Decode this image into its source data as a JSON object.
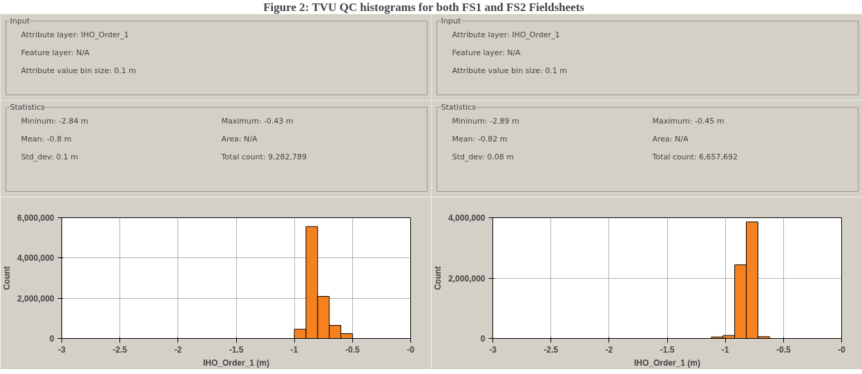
{
  "chart_data": [
    {
      "type": "other",
      "title": "Figure 2:      TVU QC histograms for both FS1 and FS2 Fieldsheets"
    },
    {
      "type": "other",
      "title": "Input",
      "annotations": [
        "Attribute layer:  IHO_Order_1",
        "Feature layer:  N/A",
        "Attribute value bin size:  0.1 m"
      ]
    },
    {
      "type": "other",
      "title": "Input",
      "annotations": [
        "Attribute layer:  IHO_Order_1",
        "Feature layer:  N/A",
        "Attribute value bin size:  0.1 m"
      ]
    },
    {
      "type": "other",
      "title": "Statistics",
      "annotations": [
        "Mininum:  -2.84 m",
        "Maximum:  -0.43 m",
        "Mean:  -0.8 m",
        "Area:  N/A",
        "Std_dev:  0.1 m",
        "Total count:  9,282,789"
      ]
    },
    {
      "type": "other",
      "title": "Statistics",
      "annotations": [
        "Mininum:  -2.89 m",
        "Maximum:  -0.45 m",
        "Mean:  -0.82 m",
        "Area:  N/A",
        "Std_dev:  0.08 m",
        "Total count:  6,657,692"
      ]
    },
    {
      "type": "histogram",
      "xlabel": "IHO_Order_1 (m)",
      "ylabel": "Count",
      "color": "#f5821f",
      "grid": true,
      "bins": [
        -2.9,
        -2.8,
        -2.7,
        -2.6,
        -2.5,
        -2.4,
        -2.3,
        -2.2,
        -2.1,
        -2.0,
        -1.9,
        -1.8,
        -1.7,
        -1.6,
        -1.5,
        -1.4,
        -1.3,
        -1.2,
        -1.1,
        -1.0,
        -0.9,
        -0.8,
        -0.7,
        -0.6,
        -0.5,
        -0.4
      ],
      "values": [
        0,
        0,
        0,
        0,
        0,
        0,
        0,
        0,
        0,
        0,
        0,
        0,
        0,
        0,
        0,
        0,
        0,
        null,
        null,
        460000,
        5560000,
        2090000,
        650000,
        240000,
        null
      ],
      "xlim": [
        -3,
        0
      ],
      "xticks": [
        -3,
        -2.5,
        -2,
        -1.5,
        -1,
        -0.5,
        {
          "value": 0,
          "label": "-0"
        }
      ],
      "ylim": [
        0,
        6000000
      ],
      "yticks": [
        0,
        {
          "value": 2000000,
          "label": "2,000,000"
        },
        {
          "value": 4000000,
          "label": "4,000,000"
        },
        {
          "value": 6000000,
          "label": "6,000,000"
        }
      ]
    },
    {
      "type": "histogram",
      "xlabel": "IHO_Order_1 (m)",
      "ylabel": "Count",
      "color": "#f5821f",
      "grid": true,
      "bins": [
        -2.92,
        -2.82,
        -2.72,
        -2.62,
        -2.52,
        -2.42,
        -2.32,
        -2.22,
        -2.12,
        -2.02,
        -1.92,
        -1.82,
        -1.72,
        -1.62,
        -1.52,
        -1.42,
        -1.32,
        -1.22,
        -1.12,
        -1.02,
        -0.92,
        -0.82,
        -0.72,
        -0.62,
        -0.52,
        -0.42
      ],
      "values": [
        0,
        0,
        0,
        0,
        0,
        0,
        0,
        0,
        0,
        0,
        0,
        0,
        0,
        0,
        0,
        0,
        0,
        null,
        50000,
        100000,
        2440000,
        3860000,
        60000,
        null,
        null
      ],
      "xlim": [
        -3,
        0
      ],
      "xticks": [
        -3,
        -2.5,
        -2,
        -1.5,
        -1,
        -0.5,
        {
          "value": 0,
          "label": "-0"
        }
      ],
      "ylim": [
        0,
        4000000
      ],
      "yticks": [
        0,
        {
          "value": 2000000,
          "label": "2,000,000"
        },
        {
          "value": 4000000,
          "label": "4,000,000"
        }
      ]
    }
  ]
}
